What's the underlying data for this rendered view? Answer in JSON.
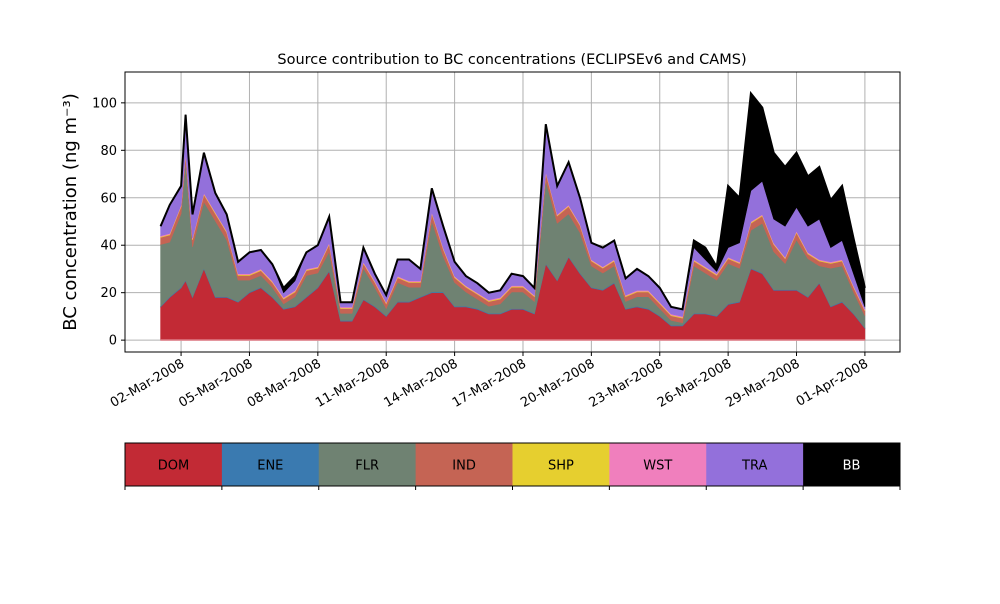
{
  "chart_data": {
    "type": "area",
    "stacked": true,
    "title": "Source contribution to BC concentrations (ECLIPSEv6 and CAMS)",
    "xlabel": "",
    "ylabel": "BC concentration (ng m⁻³)",
    "x_unit": "day of March 2008",
    "xlim": [
      -0.46,
      33.54
    ],
    "ylim": [
      -5,
      113
    ],
    "grid": true,
    "yticks": [
      0,
      20,
      40,
      60,
      80,
      100
    ],
    "xticks": [
      {
        "value": 2,
        "label": "02-Mar-2008"
      },
      {
        "value": 5,
        "label": "05-Mar-2008"
      },
      {
        "value": 8,
        "label": "08-Mar-2008"
      },
      {
        "value": 11,
        "label": "11-Mar-2008"
      },
      {
        "value": 14,
        "label": "14-Mar-2008"
      },
      {
        "value": 17,
        "label": "17-Mar-2008"
      },
      {
        "value": 20,
        "label": "20-Mar-2008"
      },
      {
        "value": 23,
        "label": "23-Mar-2008"
      },
      {
        "value": 26,
        "label": "26-Mar-2008"
      },
      {
        "value": 29,
        "label": "29-Mar-2008"
      },
      {
        "value": 32,
        "label": "01-Apr-2008"
      }
    ],
    "x": [
      1.1,
      1.5,
      2,
      2.2,
      2.5,
      3,
      3.5,
      4,
      4.5,
      5,
      5.5,
      6,
      6.5,
      7,
      7.5,
      8,
      8.5,
      9,
      9.5,
      10,
      10.5,
      11,
      11.5,
      12,
      12.5,
      13,
      13.5,
      14,
      14.5,
      15,
      15.5,
      16,
      16.5,
      17,
      17.5,
      18,
      18.5,
      19,
      19.5,
      20,
      20.5,
      21,
      21.5,
      22,
      22.5,
      23,
      23.5,
      24,
      24.5,
      25,
      25.5,
      26,
      26.5,
      27,
      27.5,
      28,
      28.5,
      29,
      29.5,
      30,
      30.5,
      31,
      31.5,
      32
    ],
    "series": [
      {
        "name": "DOM",
        "color": "#c22a35",
        "values": [
          14,
          18,
          22,
          25,
          18,
          30,
          18,
          18,
          16,
          20,
          22,
          18,
          13,
          14,
          18,
          22,
          29,
          8,
          8,
          17,
          14,
          10,
          16,
          16,
          18,
          20,
          20,
          14,
          14,
          13,
          11,
          11,
          13,
          13,
          11,
          32,
          25,
          35,
          28,
          22,
          21,
          24,
          13,
          14,
          13,
          10,
          6,
          6,
          11,
          11,
          10,
          15,
          16,
          30,
          28,
          21,
          21,
          21,
          18,
          24,
          14,
          16,
          11,
          5
        ]
      },
      {
        "name": "ENE",
        "color": "#3a7ab0",
        "values": 0.3
      },
      {
        "name": "FLR",
        "color": "#6f8272",
        "values": [
          26,
          23,
          31,
          50,
          21,
          28,
          32,
          24,
          9,
          5,
          5,
          4,
          2,
          4,
          9,
          6,
          8,
          3,
          3,
          13,
          8,
          3,
          8,
          6,
          4,
          30,
          15,
          10,
          6,
          4,
          3,
          4,
          7,
          7,
          5,
          35,
          24,
          18,
          17,
          9,
          7,
          7,
          3,
          4,
          5,
          3,
          2,
          1,
          20,
          17,
          15,
          17,
          14,
          16,
          21,
          16,
          11,
          21,
          16,
          7,
          16,
          15,
          9,
          5
        ]
      },
      {
        "name": "IND",
        "color": "#c56454",
        "values": [
          3,
          3,
          3,
          3,
          3,
          3,
          3,
          3,
          2,
          2,
          2,
          2,
          2,
          2,
          2,
          2,
          3,
          2,
          2,
          2,
          2,
          2,
          2,
          2,
          2,
          3,
          3,
          2,
          2,
          2,
          2,
          2,
          2,
          2,
          2,
          3,
          3,
          3,
          3,
          2,
          2,
          2,
          2,
          2,
          2,
          2,
          2,
          2,
          2,
          2,
          2,
          2,
          2,
          3,
          3,
          3,
          2,
          3,
          2,
          2,
          2,
          2,
          2,
          2
        ]
      },
      {
        "name": "SHP",
        "color": "#e6cf2f",
        "values": 0.3
      },
      {
        "name": "WST",
        "color": "#f07fbd",
        "values": 0.4
      },
      {
        "name": "TRA",
        "color": "#9370db",
        "values": [
          4,
          12,
          8,
          16,
          10,
          17,
          8,
          7,
          5,
          9,
          8,
          7,
          2,
          4,
          7,
          9,
          11,
          2,
          2,
          6,
          3,
          3,
          7,
          9,
          5,
          10,
          9,
          6,
          4,
          4,
          3,
          3,
          5,
          4,
          3,
          20,
          12,
          18,
          11,
          7,
          8,
          8,
          7,
          9,
          6,
          6,
          3,
          3,
          5,
          3,
          1,
          4,
          8,
          13,
          14,
          10,
          13,
          10,
          11,
          17,
          6,
          8,
          5,
          1
        ]
      },
      {
        "name": "BB",
        "color": "#000000",
        "values": [
          0,
          0,
          0,
          0,
          0,
          0,
          0,
          0,
          0,
          0,
          0,
          0,
          2,
          2,
          0,
          0,
          0,
          0,
          0,
          0,
          0,
          0,
          0,
          0,
          0,
          0,
          0,
          0,
          0,
          0,
          0,
          0,
          0,
          0,
          0,
          0,
          0,
          0,
          0,
          0,
          0,
          0,
          0,
          0,
          0,
          0,
          0,
          0,
          3,
          5,
          2,
          26,
          19,
          41,
          31,
          28,
          25,
          23,
          21,
          22,
          20,
          23,
          15,
          8
        ]
      }
    ],
    "legend": {
      "placement": "below-chart",
      "entries": [
        {
          "label": "DOM",
          "color": "#c22a35"
        },
        {
          "label": "ENE",
          "color": "#3a7ab0"
        },
        {
          "label": "FLR",
          "color": "#6f8272"
        },
        {
          "label": "IND",
          "color": "#c56454"
        },
        {
          "label": "SHP",
          "color": "#e6cf2f"
        },
        {
          "label": "WST",
          "color": "#f07fbd"
        },
        {
          "label": "TRA",
          "color": "#9370db"
        },
        {
          "label": "BB",
          "color": "#000000"
        }
      ]
    }
  }
}
